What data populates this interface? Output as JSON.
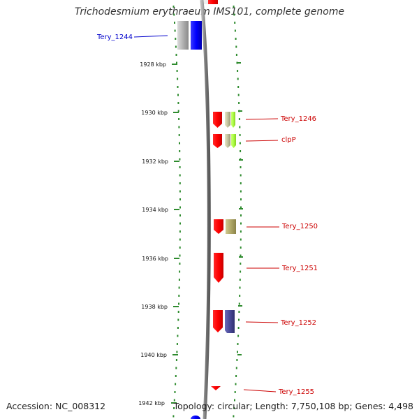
{
  "title": "Trichodesmium erythraeum IMS101, complete genome",
  "accession_text": "Accession: NC_008312",
  "summary_text": "Topology: circular; Length: 7,750,108 bp; Genes: 4,498",
  "scale_labels": [
    "1928 kbp",
    "1930 kbp",
    "1932 kbp",
    "1934 kbp",
    "1936 kbp",
    "1938 kbp",
    "1940 kbp",
    "1942 kbp"
  ],
  "genes": [
    {
      "name": "Tery_1244",
      "label_color": "#0000cc",
      "colors": [
        "#b0b0b0",
        "#0000ff"
      ]
    },
    {
      "name": "Tery_1246",
      "label_color": "#cc0000",
      "colors": [
        "#ff0000",
        "#c4c4a0",
        "#aaff44"
      ]
    },
    {
      "name": "clpP",
      "label_color": "#cc0000",
      "colors": [
        "#ff0000",
        "#c4c4a0",
        "#aaff44"
      ]
    },
    {
      "name": "Tery_1250",
      "label_color": "#cc0000",
      "colors": [
        "#ff0000",
        "#b0a868"
      ]
    },
    {
      "name": "Tery_1251",
      "label_color": "#cc0000",
      "colors": [
        "#ff0000"
      ]
    },
    {
      "name": "Tery_1252",
      "label_color": "#cc0000",
      "colors": [
        "#ff0000",
        "#4a4a9a"
      ]
    },
    {
      "name": "Tery_1255",
      "label_color": "#cc0000",
      "colors": [
        "#ff0000"
      ]
    }
  ],
  "colors": {
    "backbone": "#888888",
    "scale_ticks": "#2e8b2e",
    "dots": "#2e8b2e"
  }
}
